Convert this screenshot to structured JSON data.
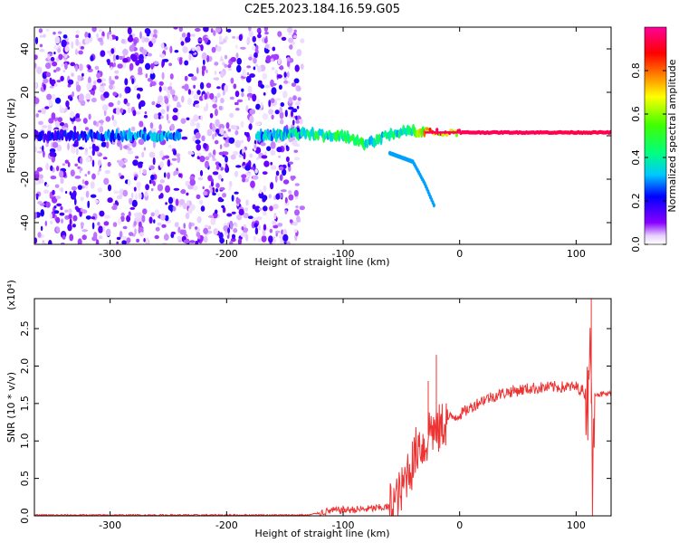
{
  "title": "C2E5.2023.184.16.59.G05",
  "chart_data": [
    {
      "type": "heatmap",
      "xlabel": "Height of straight line (km)",
      "ylabel": "Frequency (Hz)",
      "xlim": [
        -365,
        130
      ],
      "ylim": [
        -50,
        50
      ],
      "xticks": [
        -300,
        -200,
        -100,
        0,
        100
      ],
      "yticks": [
        -40,
        -20,
        0,
        20,
        40
      ],
      "colorbar": {
        "label": "Normalized spectral amplitude",
        "range": [
          0.0,
          1.0
        ],
        "ticks": [
          0.0,
          0.2,
          0.4,
          0.6,
          0.8
        ],
        "colormap": "rainbow (white-purple-blue-cyan-green-yellow-red-magenta)"
      },
      "features": [
        {
          "desc": "scattered noise",
          "x_range": [
            -365,
            -135
          ],
          "freq_range": [
            -50,
            50
          ],
          "amplitude": 0.15
        },
        {
          "desc": "carrier trace",
          "x": [
            -365,
            -300,
            -260,
            -180,
            -140,
            -100,
            -80,
            -60,
            -40,
            -30,
            0,
            60,
            110,
            130
          ],
          "freq": [
            0,
            0,
            0,
            0,
            1,
            0,
            -4,
            1,
            2,
            2,
            1.5,
            1.5,
            1.5,
            1.5
          ],
          "amplitude": [
            0.2,
            0.3,
            0.35,
            0.35,
            0.45,
            0.5,
            0.5,
            0.45,
            0.5,
            0.85,
            0.95,
            0.95,
            0.9,
            0.95
          ]
        },
        {
          "desc": "secondary trace",
          "x": [
            -60,
            -40,
            -30,
            -22
          ],
          "freq": [
            -8,
            -12,
            -22,
            -32
          ],
          "amplitude": 0.3
        }
      ],
      "grid": false
    },
    {
      "type": "line",
      "xlabel": "Height of straight line (km)",
      "ylabel": "SNR (10 * v/v)",
      "y_scale_note": "(x10⁴)",
      "xlim": [
        -365,
        130
      ],
      "ylim": [
        0,
        2.9
      ],
      "xticks": [
        -300,
        -200,
        -100,
        0,
        100
      ],
      "yticks": [
        0.0,
        0.5,
        1.0,
        1.5,
        2.0,
        2.5
      ],
      "series": [
        {
          "color": "#ee3333",
          "x": [
            -365,
            -300,
            -200,
            -130,
            -110,
            -80,
            -60,
            -50,
            -45,
            -40,
            -35,
            -30,
            -25,
            -20,
            -10,
            0,
            10,
            20,
            30,
            40,
            60,
            80,
            100,
            105,
            110,
            112,
            114,
            116,
            120,
            130
          ],
          "y": [
            0.01,
            0.01,
            0.01,
            0.01,
            0.07,
            0.09,
            0.12,
            0.3,
            0.6,
            0.7,
            1.0,
            0.9,
            1.2,
            1.1,
            1.3,
            1.35,
            1.45,
            1.55,
            1.6,
            1.65,
            1.7,
            1.72,
            1.72,
            1.68,
            1.6,
            2.8,
            0.2,
            1.65,
            1.62,
            1.63
          ],
          "spikes": [
            {
              "x": -20,
              "y": 2.15
            },
            {
              "x": -27,
              "y": 1.8
            },
            {
              "x": 113,
              "y": 2.9
            }
          ]
        }
      ],
      "grid": false
    }
  ]
}
